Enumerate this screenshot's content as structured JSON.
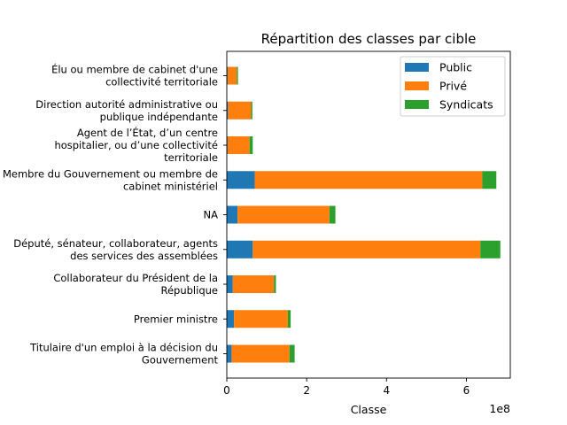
{
  "chart_data": {
    "type": "bar",
    "orientation": "horizontal",
    "stacked": true,
    "title": "Répartition des classes par cible",
    "xlabel": "Classe",
    "ylabel": "",
    "x_offset_label": "1e8",
    "xlim": [
      0,
      7.1
    ],
    "xticks": [
      0,
      2,
      4,
      6
    ],
    "xtick_labels": [
      "0",
      "2",
      "4",
      "6"
    ],
    "grid": false,
    "legend_position": "top-right",
    "categories": [
      [
        "Titulaire d'un emploi à la décision du",
        "Gouvernement"
      ],
      [
        "Premier ministre"
      ],
      [
        "Collaborateur du Président de la",
        "République"
      ],
      [
        "Député, sénateur, collaborateur, agents",
        "des services des assemblées"
      ],
      [
        "NA"
      ],
      [
        "Membre du Gouvernement ou membre de",
        "cabinet ministériel"
      ],
      [
        "Agent de l’État, d’un centre",
        "hospitalier, ou d’une collectivité",
        "territoriale"
      ],
      [
        "Direction autorité administrative ou",
        "publique indépendante"
      ],
      [
        "Élu ou membre de cabinet d'une",
        "collectivité territoriale"
      ]
    ],
    "series": [
      {
        "name": "Public",
        "color": "#1f77b4",
        "values": [
          0.12,
          0.18,
          0.15,
          0.65,
          0.27,
          0.7,
          0.02,
          0.03,
          0.02
        ]
      },
      {
        "name": "Privé",
        "color": "#ff7f0e",
        "values": [
          1.45,
          1.35,
          1.03,
          5.7,
          2.3,
          5.7,
          0.55,
          0.58,
          0.23
        ]
      },
      {
        "name": "Syndicats",
        "color": "#2ca02c",
        "values": [
          0.13,
          0.07,
          0.05,
          0.5,
          0.15,
          0.35,
          0.08,
          0.03,
          0.03
        ]
      }
    ]
  }
}
